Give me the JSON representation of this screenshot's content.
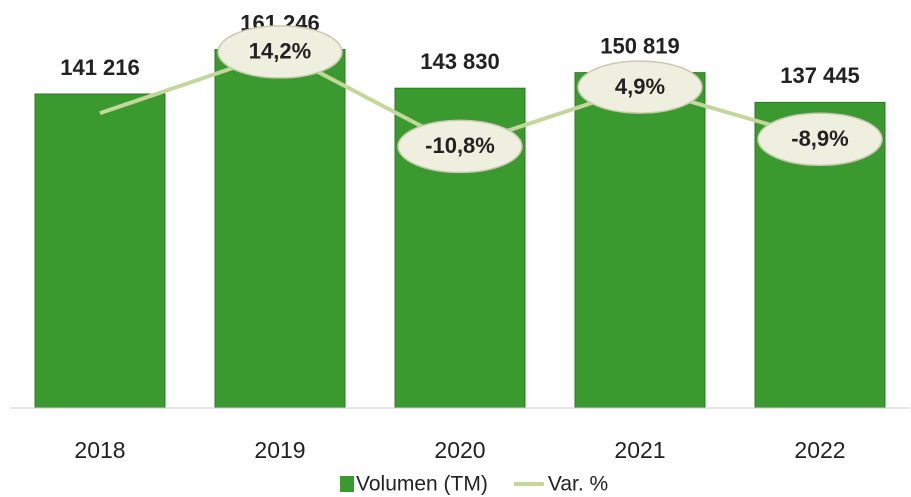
{
  "chart_data": {
    "type": "bar",
    "categories": [
      "2018",
      "2019",
      "2020",
      "2021",
      "2022"
    ],
    "ylim": [
      0,
      170000
    ],
    "y2lim": [
      -80,
      20
    ],
    "series": [
      {
        "name": "Volumen (TM)",
        "type": "bar",
        "color": "#3a9a2f",
        "values": [
          141216,
          161246,
          143830,
          150819,
          137445
        ],
        "value_labels": [
          "141 216",
          "161 246",
          "143 830",
          "150 819",
          "137 445"
        ]
      },
      {
        "name": "Var. %",
        "type": "line",
        "axis": "y2",
        "color": "#c4d79b",
        "values": [
          -2.0,
          14.2,
          -10.8,
          4.9,
          -8.9
        ],
        "value_labels": [
          null,
          "14,2%",
          "-10,8%",
          "4,9%",
          "-8,9%"
        ]
      }
    ],
    "positive_color": "#2e75b6",
    "negative_color": "#e00000",
    "legend": "bottom"
  }
}
